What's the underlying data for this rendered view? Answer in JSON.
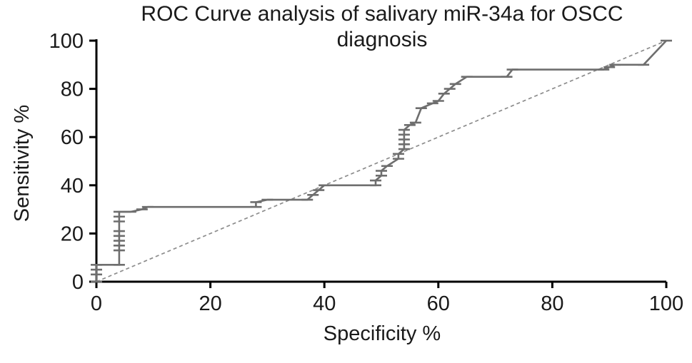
{
  "page": {
    "background": "#ffffff"
  },
  "chart_data": {
    "type": "line",
    "title": "ROC Curve analysis of salivary miR-34a for OSCC diagnosis",
    "xlabel": "Specificity %",
    "ylabel": "Sensitivity %",
    "xlim": [
      0,
      100
    ],
    "ylim": [
      0,
      100
    ],
    "x_ticks": [
      0,
      20,
      40,
      60,
      80,
      100
    ],
    "y_ticks": [
      0,
      20,
      40,
      60,
      80,
      100
    ],
    "grid": false,
    "legend": "none",
    "colors": {
      "curve": "#6e6e6e",
      "reference": "#8c8c8c",
      "axis": "#000000",
      "text": "#1a1a1a"
    },
    "series": [
      {
        "name": "ROC curve (salivary miR-34a)",
        "style": "step-with-ticks",
        "color": "#6e6e6e",
        "points": [
          [
            0,
            0
          ],
          [
            0,
            3
          ],
          [
            0,
            5
          ],
          [
            0,
            7
          ],
          [
            4,
            7
          ],
          [
            4,
            13
          ],
          [
            4,
            15
          ],
          [
            4,
            17
          ],
          [
            4,
            19
          ],
          [
            4,
            21
          ],
          [
            4,
            25
          ],
          [
            4,
            27
          ],
          [
            4,
            29
          ],
          [
            6,
            29
          ],
          [
            8,
            30
          ],
          [
            9,
            31
          ],
          [
            28,
            31
          ],
          [
            28,
            33
          ],
          [
            30,
            34
          ],
          [
            37,
            34
          ],
          [
            38,
            36
          ],
          [
            39,
            38
          ],
          [
            40,
            40
          ],
          [
            49,
            40
          ],
          [
            49,
            42
          ],
          [
            50,
            44
          ],
          [
            50,
            46
          ],
          [
            51,
            48
          ],
          [
            53,
            51
          ],
          [
            53,
            53
          ],
          [
            54,
            55
          ],
          [
            54,
            57
          ],
          [
            54,
            59
          ],
          [
            54,
            61
          ],
          [
            54,
            63
          ],
          [
            55,
            65
          ],
          [
            56,
            66
          ],
          [
            57,
            72
          ],
          [
            59,
            74
          ],
          [
            60,
            75
          ],
          [
            61,
            78
          ],
          [
            62,
            80
          ],
          [
            63,
            82
          ],
          [
            65,
            85
          ],
          [
            72,
            85
          ],
          [
            73,
            88
          ],
          [
            89,
            88
          ],
          [
            90,
            89
          ],
          [
            91,
            90
          ],
          [
            96,
            90
          ],
          [
            100,
            100
          ]
        ]
      },
      {
        "name": "Identity reference line",
        "style": "dashed",
        "color": "#8c8c8c",
        "points": [
          [
            0,
            0
          ],
          [
            100,
            100
          ]
        ]
      }
    ]
  }
}
